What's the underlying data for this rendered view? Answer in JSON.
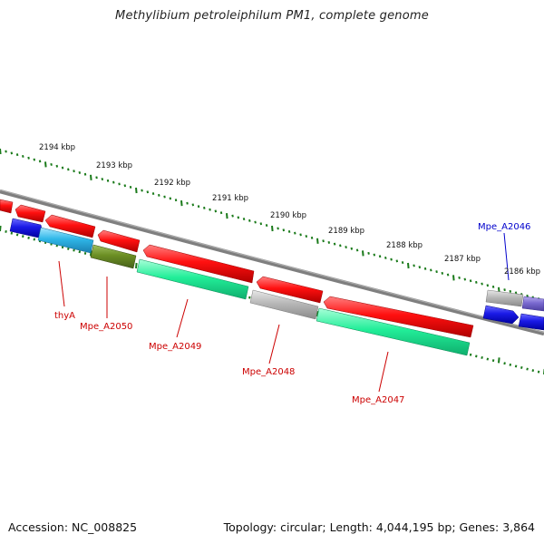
{
  "title": "Methylibium petroleiphilum PM1, complete genome",
  "footer": {
    "accession": "Accession: NC_008825",
    "summary": "Topology: circular; Length: 4,044,195 bp; Genes: 3,864"
  },
  "kbp_labels": [
    {
      "text": "2194 kbp"
    },
    {
      "text": "2193 kbp"
    },
    {
      "text": "2192 kbp"
    },
    {
      "text": "2191 kbp"
    },
    {
      "text": "2190 kbp"
    },
    {
      "text": "2189 kbp"
    },
    {
      "text": "2188 kbp"
    },
    {
      "text": "2187 kbp"
    },
    {
      "text": "2186 kbp"
    }
  ],
  "gene_labels": [
    {
      "text": "thyA",
      "color": "#cc0000"
    },
    {
      "text": "Mpe_A2050",
      "color": "#cc0000"
    },
    {
      "text": "Mpe_A2049",
      "color": "#cc0000"
    },
    {
      "text": "Mpe_A2048",
      "color": "#cc0000"
    },
    {
      "text": "Mpe_A2047",
      "color": "#cc0000"
    },
    {
      "text": "Mpe_A2046",
      "color": "#0000cc"
    }
  ],
  "colors": {
    "red_gene": "#ee1111",
    "blue_gene": "#1a1ae6",
    "cyan_gene": "#2fb7e8",
    "olive_gene": "#6b8e23",
    "green_gene": "#22ee99",
    "gray_gene": "#b4b4b4",
    "purple_gene": "#7a6ad0",
    "backbone": "#808080",
    "tick": "#1a7a1a"
  }
}
